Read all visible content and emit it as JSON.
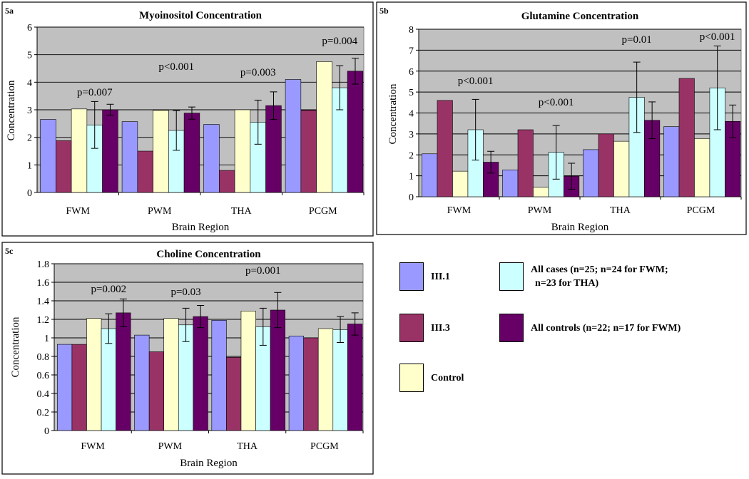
{
  "colors": {
    "plot_bg": "#c0c0c0",
    "series": [
      "#9999ff",
      "#993366",
      "#ffffcc",
      "#ccffff",
      "#660066"
    ]
  },
  "legend": {
    "items": [
      {
        "label": "III.1",
        "color": "#9999ff"
      },
      {
        "label": "III.3",
        "color": "#993366"
      },
      {
        "label": "Control",
        "color": "#ffffcc"
      },
      {
        "label": "All cases (n=25; n=24 for FWM;",
        "label2": "n=23 for THA)",
        "color": "#ccffff"
      },
      {
        "label": "All controls (n=22; n=17 for FWM)",
        "color": "#660066"
      }
    ]
  },
  "chart_data": [
    {
      "panel": "5a",
      "type": "bar",
      "title": "Myoinositol Concentration",
      "xlabel": "Brain Region",
      "ylabel": "Concentration",
      "ylim": [
        0,
        6
      ],
      "ticks": [
        "0",
        "1",
        "2",
        "3",
        "4",
        "5",
        "6"
      ],
      "categories": [
        "FWM",
        "PWM",
        "THA",
        "PCGM"
      ],
      "series": [
        {
          "name": "III.1",
          "values": [
            2.65,
            2.57,
            2.47,
            4.1
          ]
        },
        {
          "name": "III.3",
          "values": [
            1.88,
            1.5,
            0.8,
            2.98
          ]
        },
        {
          "name": "Control",
          "values": [
            3.03,
            2.98,
            3.0,
            4.75
          ]
        },
        {
          "name": "All cases",
          "values": [
            2.45,
            2.25,
            2.55,
            3.8
          ],
          "err": [
            0.85,
            0.72,
            0.8,
            0.8
          ]
        },
        {
          "name": "All controls",
          "values": [
            3.0,
            2.88,
            3.15,
            4.4
          ],
          "err": [
            0.2,
            0.22,
            0.5,
            0.47
          ]
        }
      ],
      "annotations": [
        "p=0.007",
        "p<0.001",
        "p=0.003",
        "p=0.004"
      ]
    },
    {
      "panel": "5b",
      "type": "bar",
      "title": "Glutamine Concentration",
      "xlabel": "Brain Region",
      "ylabel": "Concentration",
      "ylim": [
        0,
        8
      ],
      "ticks": [
        "0",
        "1",
        "2",
        "3",
        "4",
        "5",
        "6",
        "7",
        "8"
      ],
      "categories": [
        "FWM",
        "PWM",
        "THA",
        "PCGM"
      ],
      "series": [
        {
          "name": "III.1",
          "values": [
            2.05,
            1.28,
            2.25,
            3.35
          ]
        },
        {
          "name": "III.3",
          "values": [
            4.6,
            3.2,
            3.0,
            5.65
          ]
        },
        {
          "name": "Control",
          "values": [
            1.22,
            0.45,
            2.65,
            2.78
          ]
        },
        {
          "name": "All cases",
          "values": [
            3.2,
            2.12,
            4.75,
            5.2
          ],
          "err": [
            1.45,
            1.28,
            1.68,
            2.0
          ]
        },
        {
          "name": "All controls",
          "values": [
            1.65,
            0.98,
            3.65,
            3.6
          ],
          "err": [
            0.52,
            0.62,
            0.88,
            0.78
          ]
        }
      ],
      "annotations": [
        "p<0.001",
        "p<0.001",
        "p=0.01",
        "p<0.001"
      ]
    },
    {
      "panel": "5c",
      "type": "bar",
      "title": "Choline Concentration",
      "xlabel": "Brain Region",
      "ylabel": "Concentration",
      "ylim": [
        0,
        1.8
      ],
      "ticks": [
        "0",
        "0.2",
        "0.4",
        "0.6",
        "0.8",
        "1",
        "1.2",
        "1.4",
        "1.6",
        "1.8"
      ],
      "categories": [
        "FWM",
        "PWM",
        "THA",
        "PCGM"
      ],
      "series": [
        {
          "name": "III.1",
          "values": [
            0.93,
            1.03,
            1.19,
            1.02
          ]
        },
        {
          "name": "III.3",
          "values": [
            0.93,
            0.85,
            0.79,
            1.0
          ]
        },
        {
          "name": "Control",
          "values": [
            1.21,
            1.21,
            1.29,
            1.1
          ]
        },
        {
          "name": "All cases",
          "values": [
            1.1,
            1.14,
            1.12,
            1.09
          ],
          "err": [
            0.16,
            0.18,
            0.2,
            0.14
          ]
        },
        {
          "name": "All controls",
          "values": [
            1.27,
            1.23,
            1.3,
            1.15
          ],
          "err": [
            0.15,
            0.12,
            0.19,
            0.12
          ]
        }
      ],
      "annotations": [
        "p=0.002",
        "p=0.03",
        "p=0.001",
        ""
      ]
    }
  ]
}
